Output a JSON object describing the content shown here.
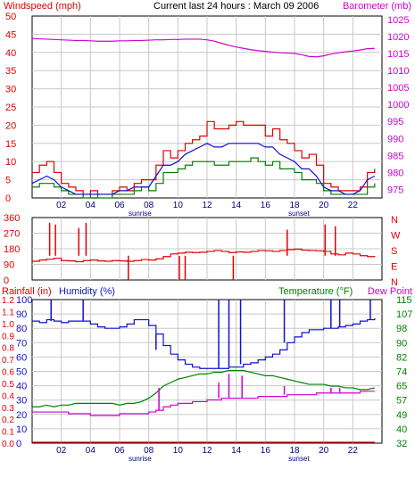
{
  "title": "Current last 24 hours : March 09 2006",
  "colors": {
    "wind": "#e00000",
    "gust": "#e00000",
    "avg_wind": "#1010d0",
    "green": "#008000",
    "barometer": "#d000d0",
    "direction": "#e00000",
    "humidity": "#1010d0",
    "temperature": "#008000",
    "dewpoint": "#d000d0",
    "rain": "#e00000",
    "grid": "#c8c8c8",
    "frame": "#000000"
  },
  "x_ticks": [
    "02",
    "04",
    "06",
    "08",
    "10",
    "12",
    "14",
    "16",
    "18",
    "20",
    "22"
  ],
  "sunrise_label": "sunrise",
  "sunset_label": "sunset",
  "chart_data": [
    {
      "type": "line",
      "panel": "wind",
      "left_axis_label": "Windspeed (mph)",
      "right_axis_label": "Barometer (mb)",
      "left_ticks": [
        "0",
        "5",
        "10",
        "15",
        "20",
        "25",
        "30",
        "35",
        "40",
        "45",
        "50"
      ],
      "right_ticks": [
        "975",
        "980",
        "985",
        "990",
        "995",
        "1000",
        "1005",
        "1010",
        "1015",
        "1020",
        "1025"
      ],
      "ylim_left": [
        0,
        50
      ],
      "ylim_right": [
        972.5,
        1026
      ],
      "x": [
        0,
        0.5,
        1,
        1.5,
        2,
        2.5,
        3,
        3.5,
        4,
        4.5,
        5,
        5.5,
        6,
        6.5,
        7,
        7.5,
        8,
        8.5,
        9,
        9.5,
        10,
        10.5,
        11,
        11.5,
        12,
        12.5,
        13,
        13.5,
        14,
        14.5,
        15,
        15.5,
        16,
        16.5,
        17,
        17.5,
        18,
        18.5,
        19,
        19.5,
        20,
        20.5,
        21,
        21.5,
        22,
        22.5,
        23,
        23.5
      ],
      "series": [
        {
          "role": "gust",
          "values": [
            7,
            9,
            10,
            7,
            4,
            3,
            2,
            1,
            2,
            1,
            1,
            2,
            3,
            2,
            4,
            5,
            5,
            9,
            13,
            11,
            13,
            15,
            16,
            17,
            21,
            19,
            19,
            20,
            21,
            20,
            20,
            20,
            17,
            19,
            16,
            15,
            13,
            11,
            12,
            9,
            4,
            3,
            2,
            2,
            2,
            3,
            7,
            8
          ]
        },
        {
          "role": "avg",
          "values": [
            4,
            5,
            6,
            5,
            3,
            2,
            1,
            1,
            1,
            1,
            1,
            1,
            2,
            2,
            3,
            3,
            3,
            6,
            9,
            9,
            10,
            12,
            13,
            14,
            15,
            14,
            14,
            15,
            15,
            15,
            15,
            15,
            14,
            14,
            12,
            11,
            10,
            8,
            8,
            6,
            3,
            2,
            2,
            1,
            1,
            2,
            5,
            6
          ]
        },
        {
          "role": "low",
          "values": [
            3,
            4,
            4,
            3,
            2,
            1,
            1,
            0,
            1,
            0,
            0,
            1,
            1,
            1,
            2,
            3,
            2,
            4,
            7,
            7,
            8,
            9,
            10,
            10,
            10,
            9,
            9,
            10,
            10,
            10,
            11,
            10,
            9,
            10,
            8,
            8,
            7,
            5,
            5,
            4,
            2,
            1,
            1,
            1,
            1,
            1,
            3,
            4
          ]
        },
        {
          "role": "barometer",
          "values": [
            1019.4,
            1019.3,
            1019.2,
            1019.1,
            1019.0,
            1018.9,
            1018.8,
            1018.8,
            1018.7,
            1018.6,
            1018.6,
            1018.6,
            1018.7,
            1018.7,
            1018.8,
            1018.8,
            1018.9,
            1019.0,
            1019.0,
            1019.1,
            1019.1,
            1019.2,
            1019.2,
            1019.2,
            1019.0,
            1018.6,
            1018.0,
            1017.4,
            1016.9,
            1016.5,
            1016.1,
            1015.8,
            1015.6,
            1015.4,
            1015.2,
            1015.1,
            1015.0,
            1014.6,
            1014.1,
            1014.0,
            1014.3,
            1014.8,
            1015.2,
            1015.5,
            1015.7,
            1016.0,
            1016.4,
            1016.5
          ]
        }
      ]
    },
    {
      "type": "line",
      "panel": "direction",
      "left_ticks": [
        "0",
        "90",
        "180",
        "270",
        "360"
      ],
      "right_ticks": [
        "N",
        "E",
        "S",
        "W",
        "N"
      ],
      "ylim": [
        0,
        360
      ],
      "x": [
        0,
        0.5,
        1,
        1.5,
        2,
        2.5,
        3,
        3.5,
        4,
        4.5,
        5,
        5.5,
        6,
        6.5,
        7,
        7.5,
        8,
        8.5,
        9,
        9.5,
        10,
        10.5,
        11,
        11.5,
        12,
        12.5,
        13,
        13.5,
        14,
        14.5,
        15,
        15.5,
        16,
        16.5,
        17,
        17.5,
        18,
        18.5,
        19,
        19.5,
        20,
        20.5,
        21,
        21.5,
        22,
        22.5,
        23,
        23.5
      ],
      "values": [
        108,
        115,
        120,
        125,
        112,
        110,
        105,
        112,
        115,
        110,
        108,
        112,
        110,
        108,
        112,
        118,
        115,
        122,
        135,
        150,
        155,
        160,
        158,
        160,
        165,
        170,
        165,
        158,
        162,
        160,
        165,
        170,
        168,
        165,
        170,
        175,
        178,
        172,
        170,
        168,
        165,
        150,
        145,
        155,
        150,
        140,
        135,
        132
      ],
      "spikes": [
        {
          "x": 1.2,
          "y": 330
        },
        {
          "x": 1.6,
          "y": 320
        },
        {
          "x": 3.2,
          "y": 300
        },
        {
          "x": 3.7,
          "y": 330
        },
        {
          "x": 6.6,
          "y": 0
        },
        {
          "x": 10.1,
          "y": 0
        },
        {
          "x": 10.5,
          "y": 0
        },
        {
          "x": 13.8,
          "y": 0
        },
        {
          "x": 17.5,
          "y": 290
        },
        {
          "x": 20.1,
          "y": 320
        },
        {
          "x": 20.8,
          "y": 310
        }
      ]
    },
    {
      "type": "line",
      "panel": "humidity_temp",
      "left_label_rain": "Rainfall (in)",
      "left_label_humidity": "Humidity (%)",
      "right_label_temp": "Temperature (°F)",
      "right_label_dew": "Dew Point",
      "rain_ticks": [
        "0.0",
        "0.1",
        "0.2",
        "0.3",
        "0.4",
        "0.5",
        "0.6",
        "0.7",
        "0.8",
        "0.9",
        "1.0",
        "1.1",
        "1.2"
      ],
      "humidity_ticks": [
        "0",
        "10",
        "20",
        "30",
        "40",
        "50",
        "60",
        "70",
        "80",
        "90",
        "100"
      ],
      "temp_ticks": [
        "32",
        "40",
        "49",
        "57",
        "65",
        "74",
        "82",
        "90",
        "98",
        "107",
        "115"
      ],
      "humidity_ylim": [
        0,
        100
      ],
      "temp_ylim": [
        32,
        115
      ],
      "rain_ylim": [
        0,
        1.2
      ],
      "x": [
        0,
        0.5,
        1,
        1.5,
        2,
        2.5,
        3,
        3.5,
        4,
        4.5,
        5,
        5.5,
        6,
        6.5,
        7,
        7.5,
        8,
        8.5,
        9,
        9.5,
        10,
        10.5,
        11,
        11.5,
        12,
        12.5,
        13,
        13.5,
        14,
        14.5,
        15,
        15.5,
        16,
        16.5,
        17,
        17.5,
        18,
        18.5,
        19,
        19.5,
        20,
        20.5,
        21,
        21.5,
        22,
        22.5,
        23,
        23.5
      ],
      "series": [
        {
          "role": "humidity",
          "values": [
            85,
            84,
            86,
            85,
            84,
            85,
            85,
            85,
            83,
            81,
            80,
            80,
            81,
            83,
            86,
            86,
            82,
            76,
            68,
            62,
            58,
            55,
            53,
            52,
            52,
            52,
            52,
            53,
            53,
            55,
            56,
            58,
            60,
            62,
            65,
            70,
            74,
            77,
            79,
            79,
            80,
            80,
            81,
            82,
            83,
            85,
            86,
            87
          ]
        },
        {
          "role": "temperature",
          "values": [
            53,
            53,
            54,
            53,
            54,
            54,
            55,
            55,
            55,
            55,
            55,
            55,
            54,
            55,
            55,
            56,
            58,
            61,
            65,
            67,
            69,
            70,
            71,
            72,
            72,
            73,
            73,
            74,
            74,
            74,
            73,
            72,
            71,
            71,
            70,
            69,
            68,
            67,
            66,
            66,
            66,
            65,
            65,
            64,
            64,
            63,
            63,
            64
          ]
        },
        {
          "role": "dewpoint",
          "values": [
            50,
            50,
            50,
            50,
            50,
            49,
            49,
            49,
            48,
            48,
            48,
            48,
            49,
            49,
            49,
            49,
            50,
            51,
            53,
            54,
            55,
            55,
            56,
            56,
            57,
            57,
            58,
            58,
            58,
            58,
            58,
            59,
            59,
            59,
            59,
            60,
            60,
            60,
            60,
            61,
            61,
            61,
            61,
            61,
            61,
            62,
            62,
            62
          ]
        },
        {
          "role": "rain",
          "values": [
            0,
            0,
            0,
            0,
            0,
            0,
            0,
            0,
            0,
            0,
            0,
            0,
            0,
            0,
            0,
            0,
            0,
            0,
            0,
            0,
            0,
            0,
            0,
            0,
            0,
            0,
            0,
            0,
            0,
            0,
            0,
            0,
            0,
            0,
            0,
            0,
            0,
            0,
            0,
            0,
            0,
            0,
            0,
            0,
            0,
            0,
            0,
            0
          ]
        }
      ],
      "humidity_spikes": [
        {
          "x": 1.3,
          "y": 100
        },
        {
          "x": 3.5,
          "y": 100
        },
        {
          "x": 8.5,
          "y": 65
        },
        {
          "x": 12.8,
          "y": 100
        },
        {
          "x": 13.5,
          "y": 100
        },
        {
          "x": 14.3,
          "y": 100
        },
        {
          "x": 17.3,
          "y": 100
        },
        {
          "x": 20.5,
          "y": 100
        },
        {
          "x": 21.1,
          "y": 100
        },
        {
          "x": 23.2,
          "y": 100
        }
      ],
      "dew_spikes": [
        {
          "x": 8.7,
          "y": 64
        },
        {
          "x": 12.8,
          "y": 67
        },
        {
          "x": 13.5,
          "y": 72
        },
        {
          "x": 14.4,
          "y": 71
        },
        {
          "x": 17.3,
          "y": 65
        },
        {
          "x": 20.5,
          "y": 64
        },
        {
          "x": 21.1,
          "y": 64
        }
      ]
    }
  ]
}
